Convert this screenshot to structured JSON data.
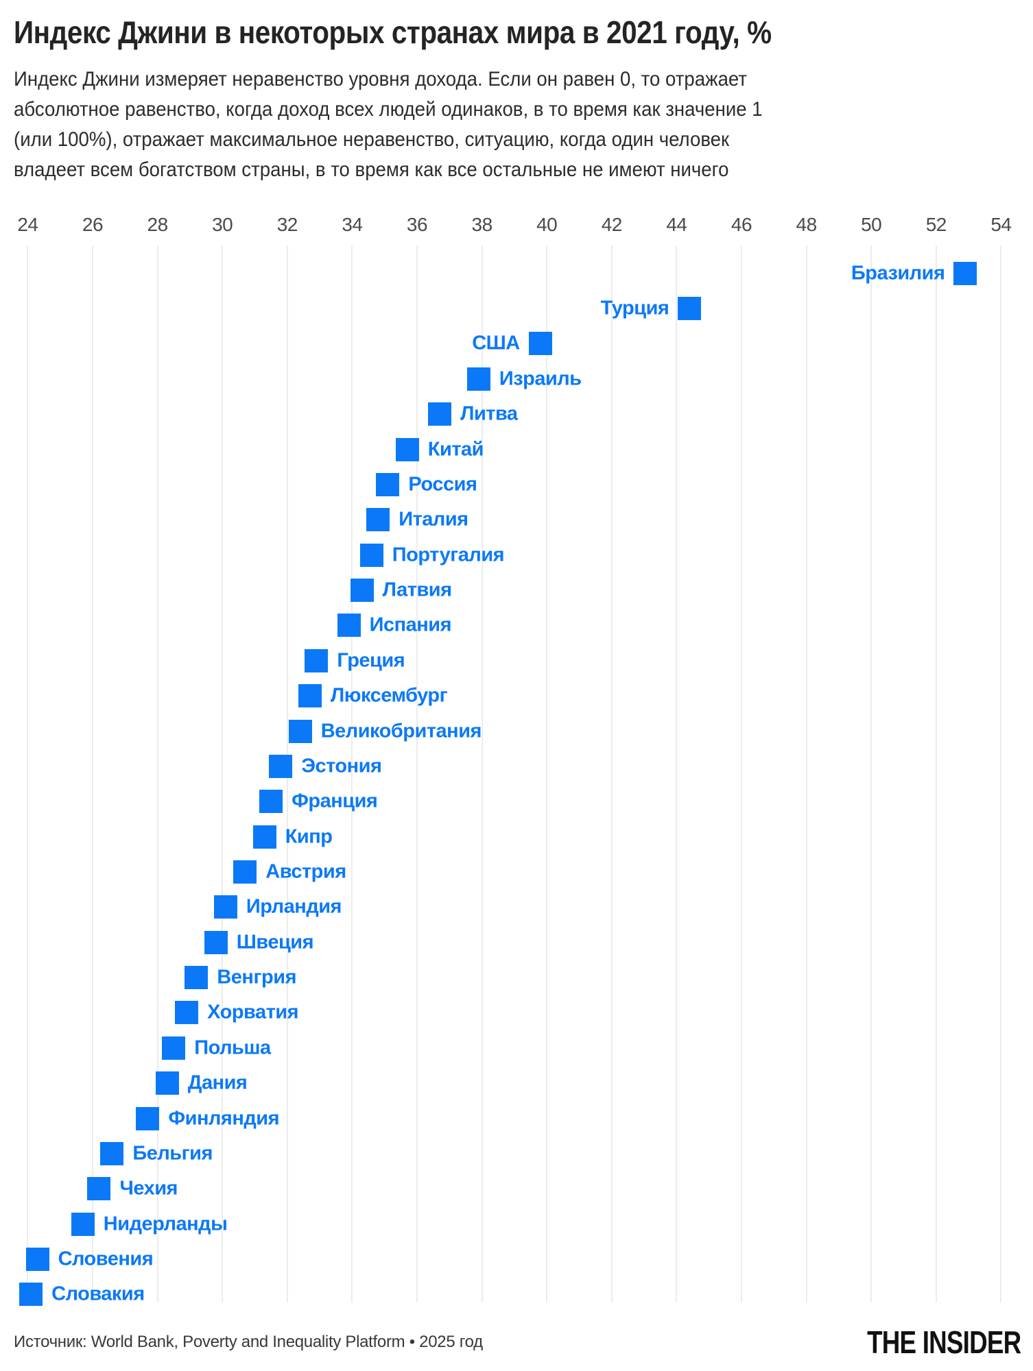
{
  "header": {
    "title": "Индекс Джини в некоторых странах мира в 2021 году, %",
    "subtitle": "Индекс Джини измеряет неравенство уровня дохода. Если он равен 0, то отражает\nабсолютное равенство, когда доход всех людей одинаков, в то время как значение 1\n(или 100%), отражает максимальное неравенство, ситуацию, когда один человек\nвладеет всем богатством страны, в то время как все остальные не имеют ничего"
  },
  "chart_data": {
    "type": "scatter",
    "variant": "horizontal-dot-plot",
    "title": "Индекс Джини в некоторых странах мира в 2021 году, %",
    "xlabel": "",
    "ylabel": "",
    "xlim": [
      24,
      54
    ],
    "x_ticks": [
      24,
      26,
      28,
      30,
      32,
      34,
      36,
      38,
      40,
      42,
      44,
      46,
      48,
      50,
      52,
      54
    ],
    "grid": "vertical-only",
    "marker": "square",
    "points": [
      {
        "country": "Бразилия",
        "value": 52.9,
        "label_side": "left"
      },
      {
        "country": "Турция",
        "value": 44.4,
        "label_side": "left"
      },
      {
        "country": "США",
        "value": 39.8,
        "label_side": "left"
      },
      {
        "country": "Израиль",
        "value": 37.9,
        "label_side": "right"
      },
      {
        "country": "Литва",
        "value": 36.7,
        "label_side": "right"
      },
      {
        "country": "Китай",
        "value": 35.7,
        "label_side": "right"
      },
      {
        "country": "Россия",
        "value": 35.1,
        "label_side": "right"
      },
      {
        "country": "Италия",
        "value": 34.8,
        "label_side": "right"
      },
      {
        "country": "Португалия",
        "value": 34.6,
        "label_side": "right"
      },
      {
        "country": "Латвия",
        "value": 34.3,
        "label_side": "right"
      },
      {
        "country": "Испания",
        "value": 33.9,
        "label_side": "right"
      },
      {
        "country": "Греция",
        "value": 32.9,
        "label_side": "right"
      },
      {
        "country": "Люксембург",
        "value": 32.7,
        "label_side": "right"
      },
      {
        "country": "Великобритания",
        "value": 32.4,
        "label_side": "right"
      },
      {
        "country": "Эстония",
        "value": 31.8,
        "label_side": "right"
      },
      {
        "country": "Франция",
        "value": 31.5,
        "label_side": "right"
      },
      {
        "country": "Кипр",
        "value": 31.3,
        "label_side": "right"
      },
      {
        "country": "Австрия",
        "value": 30.7,
        "label_side": "right"
      },
      {
        "country": "Ирландия",
        "value": 30.1,
        "label_side": "right"
      },
      {
        "country": "Швеция",
        "value": 29.8,
        "label_side": "right"
      },
      {
        "country": "Венгрия",
        "value": 29.2,
        "label_side": "right"
      },
      {
        "country": "Хорватия",
        "value": 28.9,
        "label_side": "right"
      },
      {
        "country": "Польша",
        "value": 28.5,
        "label_side": "right"
      },
      {
        "country": "Дания",
        "value": 28.3,
        "label_side": "right"
      },
      {
        "country": "Финляндия",
        "value": 27.7,
        "label_side": "right"
      },
      {
        "country": "Бельгия",
        "value": 26.6,
        "label_side": "right"
      },
      {
        "country": "Чехия",
        "value": 26.2,
        "label_side": "right"
      },
      {
        "country": "Нидерланды",
        "value": 25.7,
        "label_side": "right"
      },
      {
        "country": "Словения",
        "value": 24.3,
        "label_side": "right"
      },
      {
        "country": "Словакия",
        "value": 24.1,
        "label_side": "right"
      }
    ]
  },
  "footer": {
    "source": "Источник: World Bank, Poverty and Inequality Platform • 2025 год",
    "brand": "THE INSIDER"
  },
  "colors": {
    "accent_blue": "#0b79f7",
    "grid": "#ececec",
    "title_text": "#242424",
    "subtitle_text": "#2c2c2c",
    "tick_text": "#4a4a4a",
    "source_text": "#383838",
    "brand_text": "#111111",
    "background": "#ffffff"
  }
}
